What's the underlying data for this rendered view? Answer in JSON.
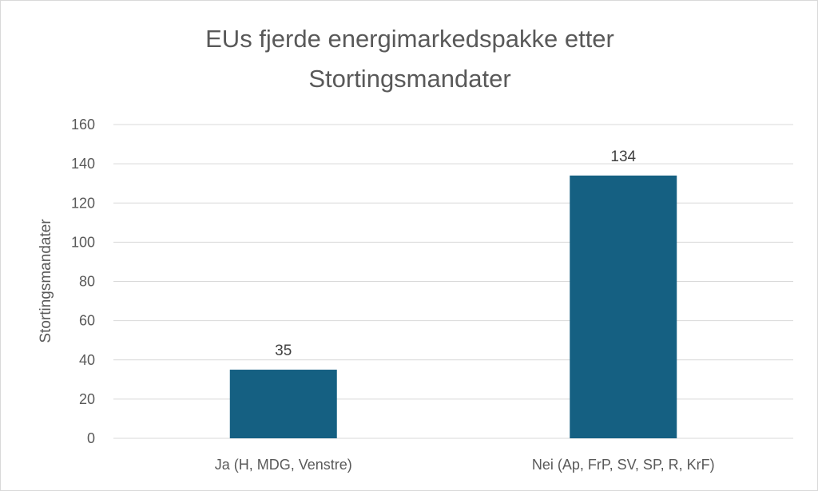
{
  "chart_data": {
    "type": "bar",
    "title_lines": [
      "EUs fjerde energimarkedspakke etter",
      "Stortingsmandater"
    ],
    "xlabel": "",
    "ylabel": "Stortingsmandater",
    "categories": [
      "Ja (H, MDG, Venstre)",
      "Nei (Ap, FrP, SV, SP, R, KrF)"
    ],
    "values": [
      35,
      134
    ],
    "data_labels": [
      "35",
      "134"
    ],
    "ylim": [
      0,
      160
    ],
    "yticks": [
      0,
      20,
      40,
      60,
      80,
      100,
      120,
      140,
      160
    ],
    "grid": true,
    "legend": "none",
    "bar_color": "#156082",
    "grid_color": "#d9d9d9",
    "text_color": "#595959"
  }
}
